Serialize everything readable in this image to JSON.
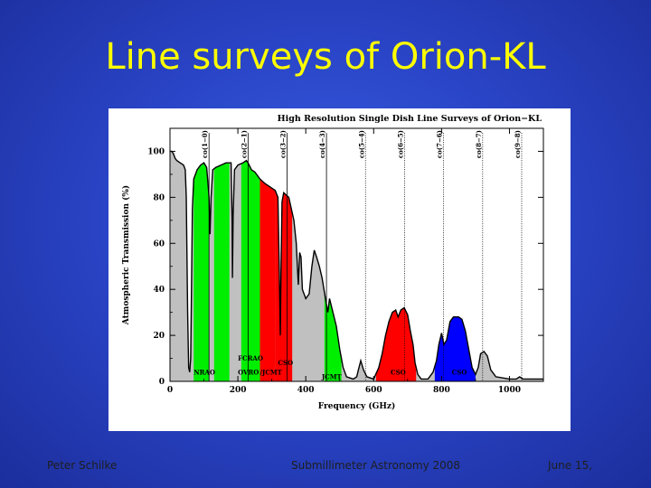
{
  "slide": {
    "title": "Line surveys of Orion-KL",
    "footer_left": "Peter Schilke",
    "footer_center": "Submillimeter Astronomy 2008",
    "footer_right": "June 15,"
  },
  "chart_data": {
    "type": "area",
    "title": "High Resolution Single Dish Line Surveys of Orion−KL",
    "xlabel": "Frequency (GHz)",
    "ylabel": "Atmospheric Transmission (%)",
    "xlim": [
      0,
      1100
    ],
    "ylim": [
      0,
      110
    ],
    "xticks": [
      0,
      200,
      400,
      600,
      800,
      1000
    ],
    "yticks": [
      0,
      20,
      40,
      60,
      80,
      100
    ],
    "co_lines": [
      {
        "label": "co(1−0)",
        "freq": 115
      },
      {
        "label": "co(2−1)",
        "freq": 230
      },
      {
        "label": "co(3−2)",
        "freq": 345
      },
      {
        "label": "co(4−3)",
        "freq": 461
      },
      {
        "label": "co(5−4)",
        "freq": 576
      },
      {
        "label": "co(6−5)",
        "freq": 691
      },
      {
        "label": "co(7−6)",
        "freq": 806
      },
      {
        "label": "co(8−7)",
        "freq": 921
      },
      {
        "label": "co(9−8)",
        "freq": 1036
      }
    ],
    "transmission": [
      [
        0,
        100
      ],
      [
        5,
        100
      ],
      [
        10,
        99
      ],
      [
        15,
        97
      ],
      [
        20,
        96
      ],
      [
        30,
        95
      ],
      [
        40,
        94
      ],
      [
        45,
        92
      ],
      [
        48,
        80
      ],
      [
        52,
        30
      ],
      [
        55,
        6
      ],
      [
        58,
        4
      ],
      [
        61,
        10
      ],
      [
        63,
        35
      ],
      [
        66,
        75
      ],
      [
        70,
        88
      ],
      [
        80,
        92
      ],
      [
        90,
        94
      ],
      [
        100,
        95
      ],
      [
        108,
        93
      ],
      [
        112,
        86
      ],
      [
        115,
        80
      ],
      [
        118,
        64
      ],
      [
        121,
        80
      ],
      [
        126,
        92
      ],
      [
        135,
        93
      ],
      [
        150,
        94
      ],
      [
        165,
        95
      ],
      [
        180,
        95
      ],
      [
        183,
        70
      ],
      [
        184,
        45
      ],
      [
        186,
        72
      ],
      [
        190,
        92
      ],
      [
        200,
        94
      ],
      [
        215,
        95
      ],
      [
        225,
        96
      ],
      [
        230,
        95
      ],
      [
        240,
        92
      ],
      [
        250,
        91
      ],
      [
        265,
        88
      ],
      [
        280,
        86
      ],
      [
        300,
        84
      ],
      [
        310,
        83
      ],
      [
        318,
        80
      ],
      [
        322,
        48
      ],
      [
        325,
        20
      ],
      [
        327,
        48
      ],
      [
        330,
        78
      ],
      [
        335,
        82
      ],
      [
        350,
        80
      ],
      [
        365,
        70
      ],
      [
        372,
        60
      ],
      [
        378,
        42
      ],
      [
        382,
        56
      ],
      [
        386,
        54
      ],
      [
        390,
        40
      ],
      [
        400,
        36
      ],
      [
        410,
        38
      ],
      [
        418,
        50
      ],
      [
        425,
        57
      ],
      [
        432,
        54
      ],
      [
        440,
        50
      ],
      [
        448,
        45
      ],
      [
        458,
        36
      ],
      [
        465,
        30
      ],
      [
        470,
        36
      ],
      [
        480,
        30
      ],
      [
        490,
        24
      ],
      [
        500,
        14
      ],
      [
        510,
        6
      ],
      [
        520,
        2
      ],
      [
        540,
        1
      ],
      [
        550,
        2
      ],
      [
        555,
        5
      ],
      [
        562,
        9
      ],
      [
        570,
        5
      ],
      [
        580,
        2
      ],
      [
        600,
        1
      ],
      [
        615,
        6
      ],
      [
        625,
        12
      ],
      [
        635,
        20
      ],
      [
        645,
        26
      ],
      [
        655,
        30
      ],
      [
        665,
        31
      ],
      [
        672,
        28
      ],
      [
        680,
        31
      ],
      [
        690,
        32
      ],
      [
        700,
        29
      ],
      [
        708,
        22
      ],
      [
        716,
        16
      ],
      [
        722,
        8
      ],
      [
        730,
        3
      ],
      [
        740,
        1
      ],
      [
        760,
        1
      ],
      [
        775,
        4
      ],
      [
        785,
        9
      ],
      [
        792,
        16
      ],
      [
        800,
        21
      ],
      [
        807,
        16
      ],
      [
        815,
        18
      ],
      [
        825,
        26
      ],
      [
        835,
        28
      ],
      [
        850,
        28
      ],
      [
        860,
        27
      ],
      [
        870,
        22
      ],
      [
        880,
        14
      ],
      [
        890,
        6
      ],
      [
        900,
        3
      ],
      [
        908,
        6
      ],
      [
        915,
        12
      ],
      [
        925,
        13
      ],
      [
        935,
        11
      ],
      [
        945,
        5
      ],
      [
        960,
        2
      ],
      [
        1000,
        1
      ],
      [
        1020,
        1
      ],
      [
        1030,
        2
      ],
      [
        1040,
        1
      ],
      [
        1060,
        1
      ],
      [
        1100,
        1
      ]
    ],
    "surveys": [
      {
        "name": "NRAO",
        "from": 70,
        "to": 115,
        "color": "#00ee00"
      },
      {
        "name": "FCRAO",
        "from": 130,
        "to": 175,
        "color": "#00ee00"
      },
      {
        "name": "OVRO",
        "from": 210,
        "to": 265,
        "color": "#00ee00"
      },
      {
        "name": "JCMT",
        "from": 265,
        "to": 310,
        "color": "#ff0000"
      },
      {
        "name": "CSO",
        "from": 310,
        "to": 360,
        "color": "#ff0000"
      },
      {
        "name": "JCMT",
        "from": 455,
        "to": 505,
        "color": "#00ee00"
      },
      {
        "name": "CSO",
        "from": 607,
        "to": 725,
        "color": "#ff0000"
      },
      {
        "name": "CSO",
        "from": 780,
        "to": 900,
        "color": "#0000ff"
      }
    ],
    "survey_labels": [
      {
        "text": "NRAO",
        "x": 70,
        "y": 3
      },
      {
        "text": "FCRAO",
        "x": 200,
        "y": 9
      },
      {
        "text": "OVRO",
        "x": 200,
        "y": 3
      },
      {
        "text": "/JCMT",
        "x": 265,
        "y": 3
      },
      {
        "text": "CSO",
        "x": 318,
        "y": 7
      },
      {
        "text": "JCMT",
        "x": 447,
        "y": 1
      },
      {
        "text": "CSO",
        "x": 650,
        "y": 3
      },
      {
        "text": "CSO",
        "x": 830,
        "y": 3
      }
    ],
    "base_fill_color": "#c0c0c0",
    "grid": false
  }
}
